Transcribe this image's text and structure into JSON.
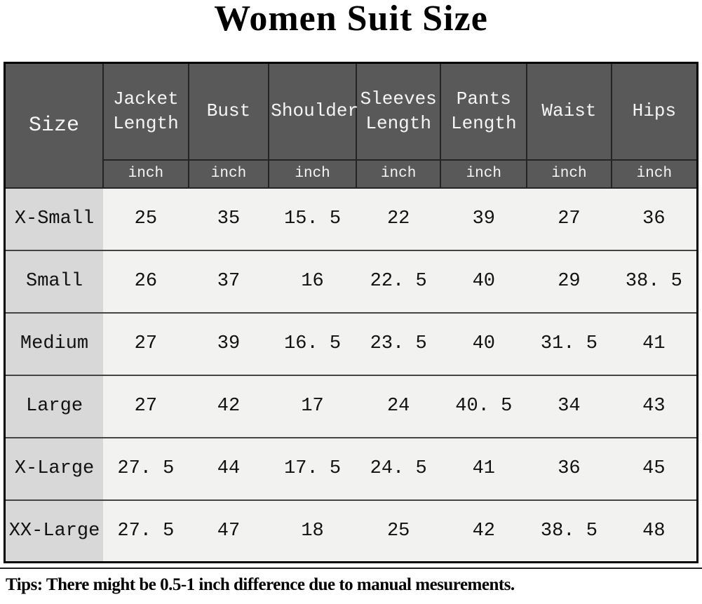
{
  "title": "Women Suit Size",
  "chart_data": {
    "type": "table",
    "title": "Women Suit Size",
    "columns": [
      "Size",
      "Jacket Length",
      "Bust",
      "Shoulder",
      "Sleeves Length",
      "Pants Length",
      "Waist",
      "Hips"
    ],
    "units": [
      "inch",
      "inch",
      "inch",
      "inch",
      "inch",
      "inch",
      "inch"
    ],
    "rows": [
      [
        "X-Small",
        "25",
        "35",
        "15. 5",
        "22",
        "39",
        "27",
        "36"
      ],
      [
        "Small",
        "26",
        "37",
        "16",
        "22. 5",
        "40",
        "29",
        "38. 5"
      ],
      [
        "Medium",
        "27",
        "39",
        "16. 5",
        "23. 5",
        "40",
        "31. 5",
        "41"
      ],
      [
        "Large",
        "27",
        "42",
        "17",
        "24",
        "40. 5",
        "34",
        "43"
      ],
      [
        "X-Large",
        "27. 5",
        "44",
        "17. 5",
        "24. 5",
        "41",
        "36",
        "45"
      ],
      [
        "XX-Large",
        "27. 5",
        "47",
        "18",
        "25",
        "42",
        "38. 5",
        "48"
      ]
    ]
  },
  "tip": "Tips: There might be 0.5-1 inch difference due to manual mesurements.",
  "colors": {
    "header_bg": "#595959",
    "header_text": "#f5f5f5",
    "size_col_bg": "#d8d8d8",
    "cell_bg": "#f2f2f1",
    "row_border": "#454545",
    "outer_border": "#000000"
  }
}
